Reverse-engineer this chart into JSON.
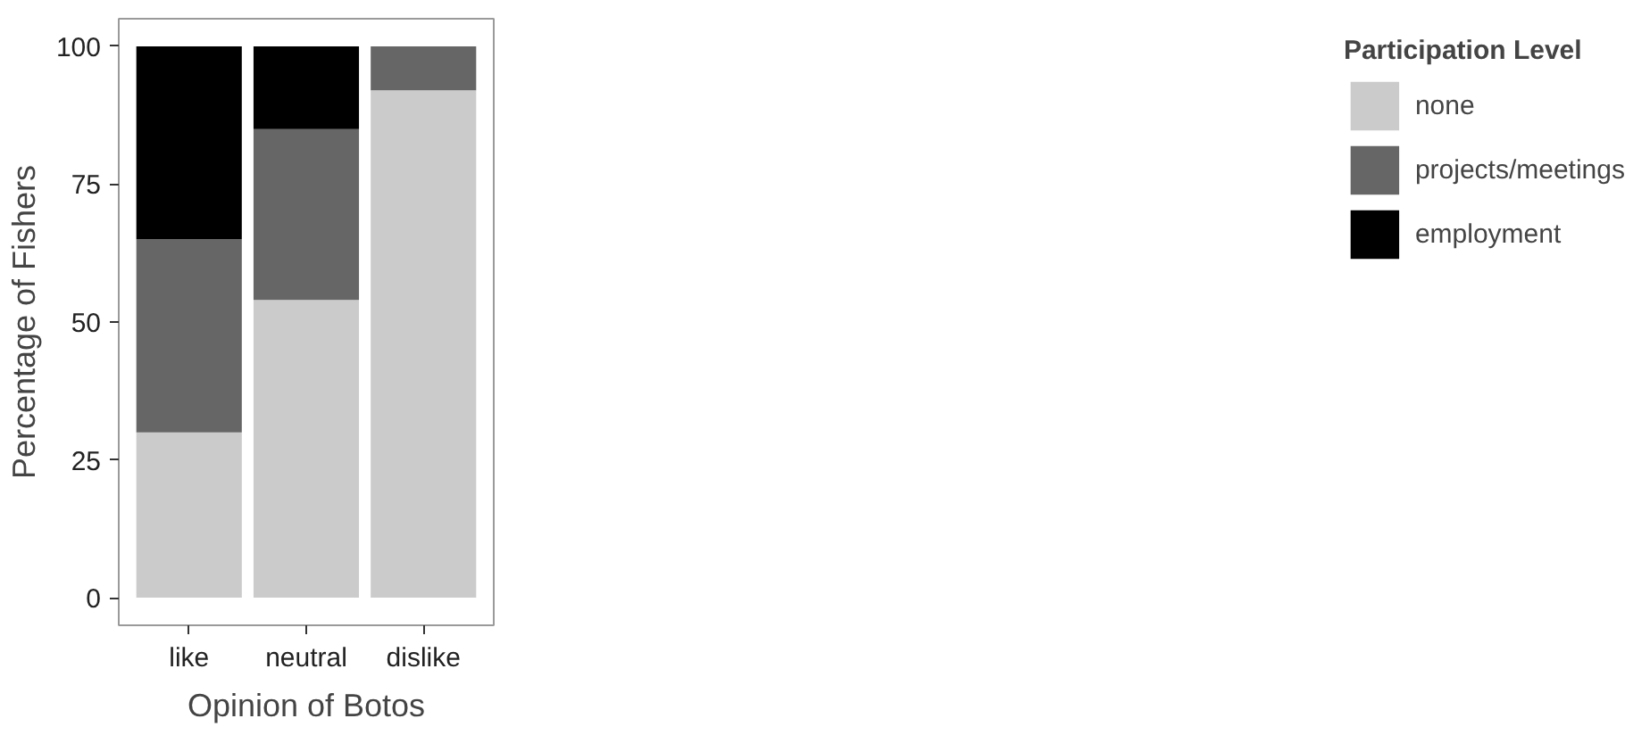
{
  "chart_data": {
    "type": "bar",
    "stacked": true,
    "categories": [
      "like",
      "neutral",
      "dislike"
    ],
    "xlabel": "Opinion of Botos",
    "ylabel": "Percentage of Fishers",
    "legend_title": "Participation Level",
    "series": [
      {
        "name": "none",
        "color": "#cbcbcb",
        "values": [
          30,
          54,
          92
        ]
      },
      {
        "name": "projects/meetings",
        "color": "#666666",
        "values": [
          35,
          31,
          8
        ]
      },
      {
        "name": "employment",
        "color": "#000000",
        "values": [
          35,
          15,
          0
        ]
      }
    ],
    "ylim": [
      -5,
      105
    ],
    "yticks": [
      0,
      25,
      50,
      75,
      100
    ],
    "grid": false,
    "legend": "right"
  }
}
